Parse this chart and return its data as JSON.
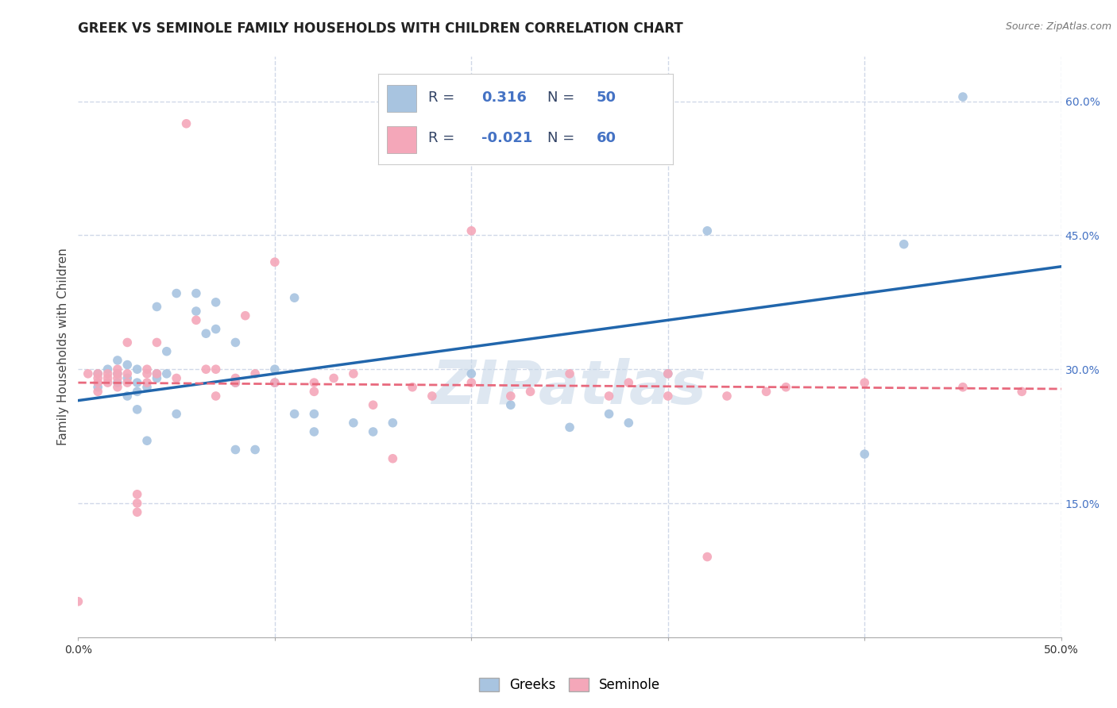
{
  "title": "GREEK VS SEMINOLE FAMILY HOUSEHOLDS WITH CHILDREN CORRELATION CHART",
  "source": "Source: ZipAtlas.com",
  "ylabel": "Family Households with Children",
  "xlim": [
    0.0,
    0.5
  ],
  "ylim": [
    0.0,
    0.65
  ],
  "xticks": [
    0.0,
    0.1,
    0.2,
    0.3,
    0.4,
    0.5
  ],
  "xticklabels": [
    "0.0%",
    "",
    "",
    "",
    "",
    "50.0%"
  ],
  "yticks_right": [
    0.15,
    0.3,
    0.45,
    0.6
  ],
  "ytick_right_labels": [
    "15.0%",
    "30.0%",
    "45.0%",
    "60.0%"
  ],
  "greek_color": "#a8c4e0",
  "seminole_color": "#f4a7b9",
  "greek_line_color": "#2166ac",
  "seminole_line_color": "#e8697d",
  "watermark": "ZIPatlas",
  "watermark_color": "#c8d8e8",
  "title_fontsize": 12,
  "axis_label_fontsize": 11,
  "tick_fontsize": 10,
  "greek_r": 0.316,
  "greek_n": 50,
  "seminole_r": -0.021,
  "seminole_n": 60,
  "greek_scatter_x": [
    0.01,
    0.01,
    0.015,
    0.02,
    0.02,
    0.02,
    0.025,
    0.025,
    0.025,
    0.03,
    0.03,
    0.03,
    0.03,
    0.035,
    0.035,
    0.04,
    0.04,
    0.04,
    0.045,
    0.045,
    0.05,
    0.05,
    0.06,
    0.06,
    0.065,
    0.07,
    0.07,
    0.08,
    0.08,
    0.08,
    0.09,
    0.1,
    0.1,
    0.11,
    0.11,
    0.12,
    0.12,
    0.14,
    0.15,
    0.16,
    0.2,
    0.22,
    0.25,
    0.27,
    0.28,
    0.3,
    0.32,
    0.4,
    0.42,
    0.45
  ],
  "greek_scatter_y": [
    0.28,
    0.295,
    0.3,
    0.285,
    0.295,
    0.31,
    0.27,
    0.29,
    0.305,
    0.255,
    0.275,
    0.285,
    0.3,
    0.22,
    0.28,
    0.29,
    0.295,
    0.37,
    0.295,
    0.32,
    0.25,
    0.385,
    0.365,
    0.385,
    0.34,
    0.345,
    0.375,
    0.21,
    0.285,
    0.33,
    0.21,
    0.285,
    0.3,
    0.25,
    0.38,
    0.23,
    0.25,
    0.24,
    0.23,
    0.24,
    0.295,
    0.26,
    0.235,
    0.25,
    0.24,
    0.295,
    0.455,
    0.205,
    0.44,
    0.605
  ],
  "seminole_scatter_x": [
    0.0,
    0.005,
    0.01,
    0.01,
    0.01,
    0.01,
    0.015,
    0.015,
    0.015,
    0.02,
    0.02,
    0.02,
    0.02,
    0.025,
    0.025,
    0.025,
    0.03,
    0.03,
    0.03,
    0.035,
    0.035,
    0.035,
    0.04,
    0.04,
    0.05,
    0.055,
    0.06,
    0.065,
    0.07,
    0.07,
    0.08,
    0.08,
    0.085,
    0.09,
    0.1,
    0.1,
    0.12,
    0.12,
    0.13,
    0.14,
    0.15,
    0.16,
    0.17,
    0.18,
    0.2,
    0.2,
    0.22,
    0.23,
    0.25,
    0.27,
    0.28,
    0.3,
    0.3,
    0.32,
    0.33,
    0.35,
    0.36,
    0.4,
    0.45,
    0.48
  ],
  "seminole_scatter_y": [
    0.04,
    0.295,
    0.275,
    0.285,
    0.29,
    0.295,
    0.285,
    0.29,
    0.295,
    0.28,
    0.29,
    0.295,
    0.3,
    0.285,
    0.295,
    0.33,
    0.14,
    0.15,
    0.16,
    0.285,
    0.295,
    0.3,
    0.295,
    0.33,
    0.29,
    0.575,
    0.355,
    0.3,
    0.27,
    0.3,
    0.285,
    0.29,
    0.36,
    0.295,
    0.285,
    0.42,
    0.275,
    0.285,
    0.29,
    0.295,
    0.26,
    0.2,
    0.28,
    0.27,
    0.285,
    0.455,
    0.27,
    0.275,
    0.295,
    0.27,
    0.285,
    0.27,
    0.295,
    0.09,
    0.27,
    0.275,
    0.28,
    0.285,
    0.28,
    0.275
  ],
  "background_color": "#ffffff",
  "grid_color": "#d0d8e8",
  "greek_trendline_x": [
    0.0,
    0.5
  ],
  "greek_trendline_y": [
    0.265,
    0.415
  ],
  "seminole_trendline_x": [
    0.0,
    0.5
  ],
  "seminole_trendline_y": [
    0.285,
    0.278
  ]
}
